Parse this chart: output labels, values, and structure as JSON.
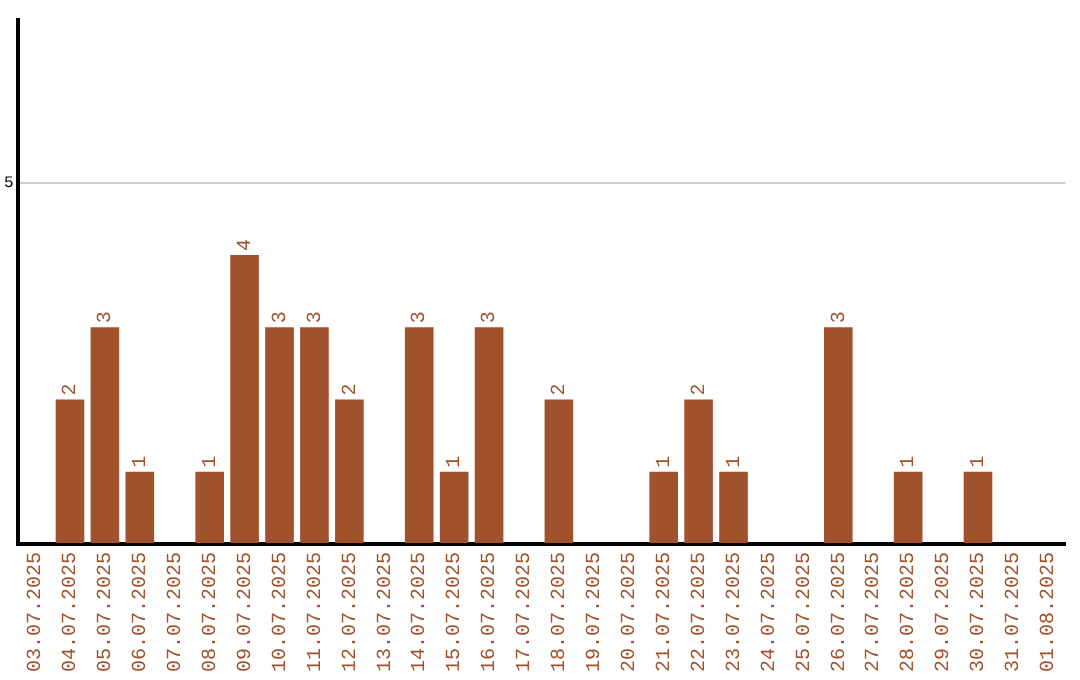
{
  "chart_data": {
    "type": "bar",
    "categories": [
      "03.07.2025",
      "04.07.2025",
      "05.07.2025",
      "06.07.2025",
      "07.07.2025",
      "08.07.2025",
      "09.07.2025",
      "10.07.2025",
      "11.07.2025",
      "12.07.2025",
      "13.07.2025",
      "14.07.2025",
      "15.07.2025",
      "16.07.2025",
      "17.07.2025",
      "18.07.2025",
      "19.07.2025",
      "20.07.2025",
      "21.07.2025",
      "22.07.2025",
      "23.07.2025",
      "24.07.2025",
      "25.07.2025",
      "26.07.2025",
      "27.07.2025",
      "28.07.2025",
      "29.07.2025",
      "30.07.2025",
      "31.07.2025",
      "01.08.2025"
    ],
    "values": [
      0,
      2,
      3,
      1,
      0,
      1,
      4,
      3,
      3,
      2,
      0,
      3,
      1,
      3,
      0,
      2,
      0,
      0,
      1,
      2,
      1,
      0,
      0,
      3,
      0,
      1,
      0,
      1,
      0,
      0
    ],
    "value_labels": [
      null,
      "2",
      "3",
      "1",
      null,
      "1",
      "4",
      "3",
      "3",
      "2",
      null,
      "3",
      "1",
      "3",
      null,
      "2",
      null,
      null,
      "1",
      "2",
      "1",
      null,
      null,
      "3",
      null,
      "1",
      null,
      "1",
      null,
      null
    ],
    "color": "#a0522d",
    "ylim": [
      0,
      7.25
    ],
    "yticks": [
      {
        "value": 0,
        "label": null
      },
      5
    ],
    "grid": "y",
    "legend": false
  }
}
